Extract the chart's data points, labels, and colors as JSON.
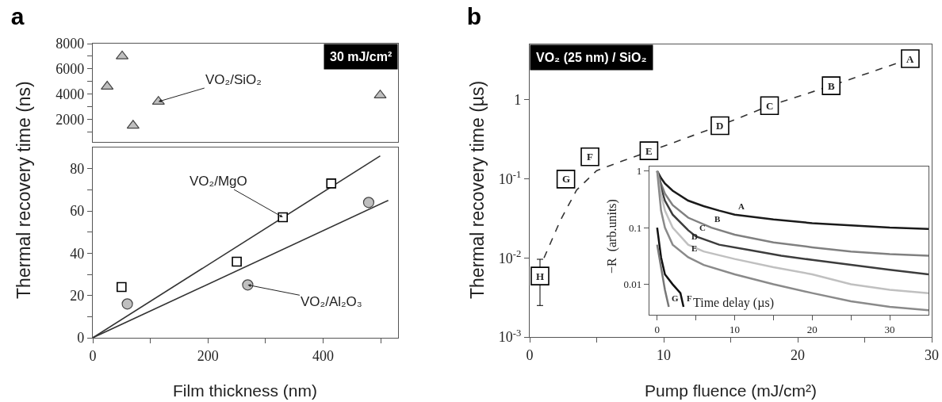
{
  "chart_data": [
    {
      "type": "scatter",
      "title": "a",
      "tick_labels": "y",
      "xlim": [
        0,
        530
      ],
      "ylim": [
        200,
        8000
      ],
      "yticks": [
        {
          "value": 1000,
          "label": null
        },
        2000,
        {
          "value": 3000,
          "label": null
        },
        4000,
        {
          "value": 5000,
          "label": null
        },
        6000,
        {
          "value": 7000,
          "label": null
        },
        8000
      ],
      "series": [
        {
          "x": [
            25,
            51,
            70,
            114,
            499
          ],
          "values": [
            4600,
            7000,
            1500,
            3400,
            3900
          ],
          "color": "#bfbfbf",
          "marker": "triangle"
        }
      ],
      "annotations": [
        {
          "text": "VO₂/SiO₂",
          "x": 114,
          "y": 3400
        },
        "30 mJ/cm²"
      ]
    },
    {
      "type": "scatter",
      "xlabel": "Film thickness (nm)",
      "ylabel": "Thermal recovery time (ns)",
      "xlim": [
        0,
        530
      ],
      "xticks": [
        0,
        {
          "value": 100,
          "label": null
        },
        200,
        {
          "value": 300,
          "label": null
        },
        400,
        {
          "value": 500,
          "label": null
        }
      ],
      "ylim": [
        0,
        90
      ],
      "yticks": [
        0,
        {
          "value": 10,
          "label": null
        },
        20,
        {
          "value": 30,
          "label": null
        },
        40,
        {
          "value": 50,
          "label": null
        },
        60,
        {
          "value": 70,
          "label": null
        },
        80
      ],
      "series": [
        {
          "x": [
            50,
            250,
            330,
            414
          ],
          "values": [
            24,
            36,
            57,
            73
          ],
          "color": "#000000",
          "marker": "square"
        },
        {
          "x": [
            60,
            269,
            479
          ],
          "values": [
            16,
            25,
            64
          ],
          "color": "#bfbfbf",
          "marker": "circle"
        },
        {
          "type": "line",
          "x": [
            0,
            499
          ],
          "values": [
            0,
            86
          ],
          "color": "#333333"
        },
        {
          "type": "line",
          "x": [
            0,
            513
          ],
          "values": [
            0,
            65
          ],
          "color": "#333333"
        }
      ],
      "annotations": [
        {
          "text": "VO₂/MgO",
          "x": 330,
          "y": 57
        },
        {
          "text": "VO₂/Al₂O₃",
          "x": 269,
          "y": 25
        }
      ]
    },
    {
      "type": "scatter",
      "title": "b",
      "log": "y",
      "xlabel": "Pump fluence (mJ/cm²)",
      "ylabel": "Thermal recovery time (µs)",
      "xlim": [
        0,
        30
      ],
      "xticks": [
        0,
        {
          "value": 5,
          "label": null
        },
        10,
        {
          "value": 15,
          "label": null
        },
        20,
        {
          "value": 25,
          "label": null
        },
        30
      ],
      "ylim": [
        0.001,
        5
      ],
      "yticks": [
        {
          "value": 0.001,
          "label": "10$^{-3}$"
        },
        {
          "value": 0.01,
          "label": "10$^{-2}$"
        },
        {
          "value": 0.1,
          "label": "10$^{-1}$"
        },
        1
      ],
      "series": [
        {
          "type": "line",
          "line_style": "dashed",
          "x": [
            1.07,
            2.3,
            3.5,
            5,
            7,
            9.4,
            14.2,
            17.9,
            22.5,
            28.4
          ],
          "values": [
            0.01,
            0.03,
            0.072,
            0.127,
            0.17,
            0.237,
            0.47,
            0.84,
            1.5,
            3.3
          ],
          "color": "#333333"
        },
        {
          "x": [
            28.4,
            22.5,
            17.9,
            14.2,
            8.9,
            4.5,
            2.7,
            0.77
          ],
          "values": [
            3.3,
            1.5,
            0.84,
            0.47,
            0.226,
            0.19,
            0.099,
            0.0059
          ],
          "errors": [
            null,
            null,
            null,
            null,
            null,
            null,
            null,
            [
              0.0025,
              0.0096
            ]
          ],
          "color": "#000000",
          "marker": "square"
        }
      ],
      "annotations": [
        {
          "text": "A",
          "x": 28.4,
          "y": 3.3
        },
        {
          "text": "B",
          "x": 22.5,
          "y": 1.5
        },
        {
          "text": "C",
          "x": 17.9,
          "y": 0.84
        },
        {
          "text": "D",
          "x": 14.2,
          "y": 0.47
        },
        {
          "text": "E",
          "x": 8.9,
          "y": 0.226
        },
        {
          "text": "F",
          "x": 4.5,
          "y": 0.19
        },
        {
          "text": "G",
          "x": 2.7,
          "y": 0.099
        },
        {
          "text": "H",
          "x": 0.77,
          "y": 0.0059
        },
        "VO₂ (25 nm) / SiO₂"
      ]
    },
    {
      "type": "line",
      "log": "y",
      "xlabel": "Time delay (µs)",
      "ylabel": "−R  (arb.units)",
      "xlim": [
        -1,
        35
      ],
      "xticks": [
        0,
        {
          "value": 5,
          "label": null
        },
        10,
        {
          "value": 15,
          "label": null
        },
        20,
        {
          "value": 25,
          "label": null
        },
        30
      ],
      "ylim": [
        0.0029,
        1.2
      ],
      "yticks": [
        0.01,
        0.1,
        1
      ],
      "series": [
        {
          "x": [
            0,
            0.5,
            1,
            2,
            4,
            6,
            8,
            10,
            15,
            20,
            25,
            30,
            35
          ],
          "values": [
            1,
            0.75,
            0.6,
            0.45,
            0.3,
            0.24,
            0.2,
            0.17,
            0.14,
            0.12,
            0.11,
            0.1,
            0.095
          ],
          "color": "#1a1a1a"
        },
        {
          "x": [
            0,
            0.5,
            1,
            2,
            4,
            7,
            10,
            15,
            20,
            25,
            30,
            35
          ],
          "values": [
            1,
            0.6,
            0.4,
            0.25,
            0.15,
            0.1,
            0.075,
            0.055,
            0.045,
            0.038,
            0.034,
            0.032
          ],
          "color": "#808080"
        },
        {
          "x": [
            0,
            0.5,
            1,
            2,
            4,
            5,
            8,
            12,
            16,
            20,
            25,
            30,
            35
          ],
          "values": [
            1,
            0.5,
            0.3,
            0.17,
            0.09,
            0.07,
            0.05,
            0.04,
            0.032,
            0.027,
            0.022,
            0.018,
            0.015
          ],
          "color": "#3c3c3c"
        },
        {
          "x": [
            0,
            0.5,
            1,
            2,
            4,
            6,
            10,
            15,
            20,
            25,
            30,
            35
          ],
          "values": [
            1,
            0.4,
            0.2,
            0.1,
            0.05,
            0.038,
            0.028,
            0.02,
            0.015,
            0.01,
            0.008,
            0.007
          ],
          "color": "#c0c0c0"
        },
        {
          "x": [
            0,
            0.5,
            1,
            2,
            4,
            6,
            10,
            15,
            20,
            25,
            30,
            35
          ],
          "values": [
            1,
            0.2,
            0.1,
            0.05,
            0.03,
            0.022,
            0.015,
            0.01,
            0.007,
            0.005,
            0.004,
            0.0035
          ],
          "color": "#8a8a8a"
        },
        {
          "x": [
            0,
            0.5,
            1,
            2,
            3,
            3.4
          ],
          "values": [
            0.1,
            0.03,
            0.015,
            0.01,
            0.007,
            0.004
          ],
          "color": "#111111"
        },
        {
          "x": [
            0,
            0.5,
            1,
            1.5
          ],
          "values": [
            0.05,
            0.02,
            0.008,
            0.004
          ],
          "color": "#777777"
        }
      ],
      "annotations": [
        {
          "text": "A",
          "x": 10,
          "y": 0.17
        },
        {
          "text": "B",
          "x": 7,
          "y": 0.1
        },
        {
          "text": "C",
          "x": 5,
          "y": 0.07
        },
        {
          "text": "D",
          "x": 4,
          "y": 0.05
        },
        {
          "text": "E",
          "x": 4,
          "y": 0.03
        },
        {
          "text": "F",
          "x": 3.4,
          "y": 0.004
        },
        {
          "text": "G",
          "x": 1.5,
          "y": 0.004
        }
      ]
    }
  ]
}
